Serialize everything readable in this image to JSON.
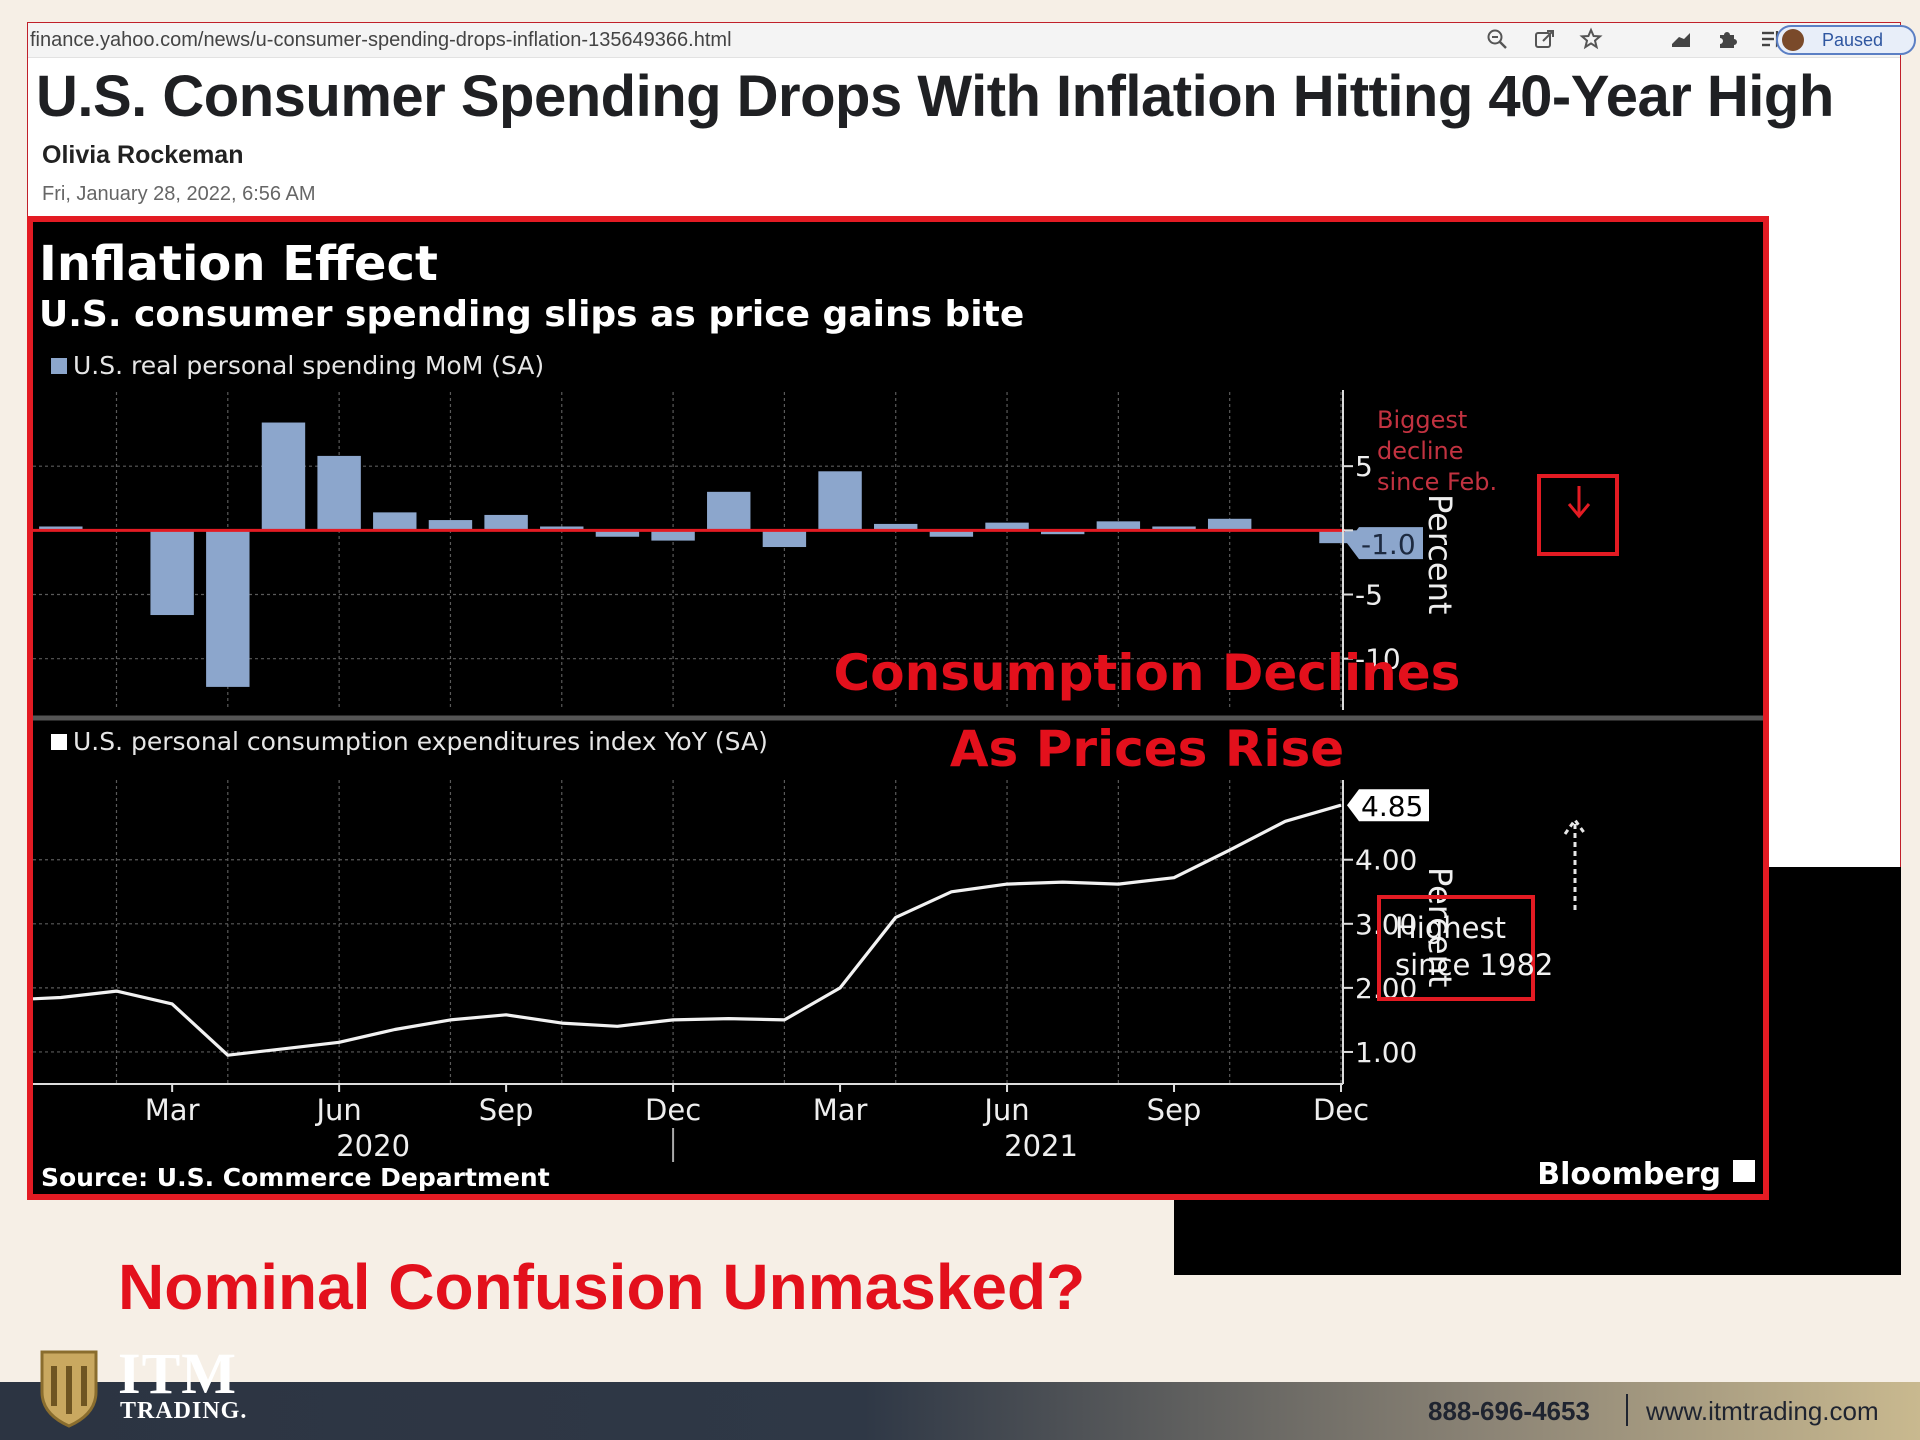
{
  "browser": {
    "url": "finance.yahoo.com/news/u-consumer-spending-drops-inflation-135649366.html",
    "paused_label": "Paused",
    "toolbar_icons": [
      "zoom-icon",
      "share-icon",
      "star-icon",
      "chart-icon",
      "puzzle-icon",
      "reading-list-icon"
    ]
  },
  "article": {
    "headline": "U.S. Consumer Spending Drops With Inflation Hitting 40-Year High",
    "author": "Olivia Rockeman",
    "date": "Fri, January 28, 2022, 6:56 AM"
  },
  "overlay": {
    "line1": "Consumption Declines",
    "line2": "As Prices Rise"
  },
  "caption": "Nominal Confusion Unmasked?",
  "footer": {
    "logo_main": "ITM",
    "logo_sub": "TRADING.",
    "phone": "888-696-4653",
    "separator": "|",
    "website": "www.itmtrading.com"
  },
  "colors": {
    "accent_red": "#e31b23",
    "bar_blue": "#8ca6cc",
    "chart_bg": "#000000"
  },
  "chart_data": {
    "type": "bar+line",
    "title": "Inflation Effect",
    "subtitle": "U.S. consumer spending slips as price gains bite",
    "source": "Source: U.S. Commerce Department",
    "brand": "Bloomberg",
    "x_ticks": [
      "Mar",
      "Jun",
      "Sep",
      "Dec",
      "Mar",
      "Jun",
      "Sep",
      "Dec"
    ],
    "x_tick_months": [
      "2020-03",
      "2020-06",
      "2020-09",
      "2020-12",
      "2021-03",
      "2021-06",
      "2021-09",
      "2021-12"
    ],
    "x_years": [
      {
        "label": "2020",
        "month": "2020-06"
      },
      {
        "label": "2021",
        "month": "2021-06"
      }
    ],
    "months": [
      "2020-01",
      "2020-02",
      "2020-03",
      "2020-04",
      "2020-05",
      "2020-06",
      "2020-07",
      "2020-08",
      "2020-09",
      "2020-10",
      "2020-11",
      "2020-12",
      "2021-01",
      "2021-02",
      "2021-03",
      "2021-04",
      "2021-05",
      "2021-06",
      "2021-07",
      "2021-08",
      "2021-09",
      "2021-10",
      "2021-11",
      "2021-12"
    ],
    "panels": [
      {
        "type": "bar",
        "legend": "U.S. real personal spending MoM (SA)",
        "ylabel": "Percent",
        "ylim": [
          -14,
          10
        ],
        "yticks": [
          5,
          0,
          -5,
          -10
        ],
        "ytick_labels": [
          "5",
          "",
          "-5",
          "-10"
        ],
        "values": [
          0.3,
          0.1,
          -6.6,
          -12.2,
          8.4,
          5.8,
          1.4,
          0.8,
          1.2,
          0.3,
          -0.5,
          -0.8,
          3.0,
          -1.3,
          4.6,
          0.5,
          -0.5,
          0.6,
          -0.3,
          0.7,
          0.3,
          0.9,
          0.1,
          -1.0
        ],
        "last_value_label": "-1.0",
        "annotation": "Biggest decline since Feb."
      },
      {
        "type": "line",
        "legend": "U.S. personal consumption expenditures index YoY (SA)",
        "ylabel": "Percent",
        "ylim": [
          0.5,
          5.4
        ],
        "yticks": [
          4.0,
          3.0,
          2.0,
          1.0
        ],
        "ytick_labels": [
          "4.00",
          "3.00",
          "2.00",
          "1.00"
        ],
        "values": [
          1.85,
          1.95,
          1.75,
          0.95,
          1.05,
          1.15,
          1.35,
          1.5,
          1.58,
          1.45,
          1.4,
          1.5,
          1.52,
          1.5,
          2.0,
          3.1,
          3.5,
          3.62,
          3.65,
          3.62,
          3.72,
          4.15,
          4.6,
          4.85
        ],
        "last_value_label": "4.85",
        "annotation": "Highest since 1982"
      }
    ]
  }
}
